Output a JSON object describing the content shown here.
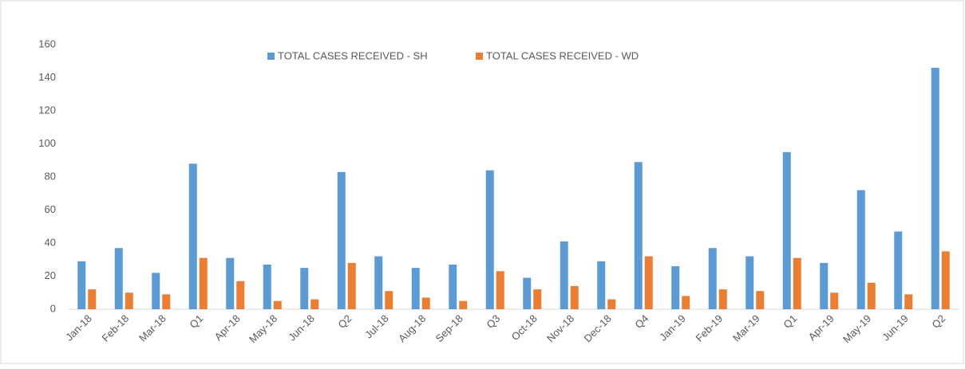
{
  "chart_data": {
    "type": "bar",
    "categories": [
      "Jan-18",
      "Feb-18",
      "Mar-18",
      "Q1",
      "Apr-18",
      "May-18",
      "Jun-18",
      "Q2",
      "Jul-18",
      "Aug-18",
      "Sep-18",
      "Q3",
      "Oct-18",
      "Nov-18",
      "Dec-18",
      "Q4",
      "Jan-19",
      "Feb-19",
      "Mar-19",
      "Q1",
      "Apr-19",
      "May-19",
      "Jun-19",
      "Q2"
    ],
    "series": [
      {
        "name": "TOTAL CASES RECEIVED - SH",
        "color": "#5b9bd5",
        "values": [
          29,
          37,
          22,
          88,
          31,
          27,
          25,
          83,
          32,
          25,
          27,
          84,
          19,
          41,
          29,
          89,
          26,
          37,
          32,
          95,
          28,
          72,
          47,
          146
        ]
      },
      {
        "name": "TOTAL CASES RECEIVED - WD",
        "color": "#ed7d31",
        "values": [
          12,
          10,
          9,
          31,
          17,
          5,
          6,
          28,
          11,
          7,
          5,
          23,
          12,
          14,
          6,
          32,
          8,
          12,
          11,
          31,
          10,
          16,
          9,
          35
        ]
      }
    ],
    "ylim": [
      0,
      160
    ],
    "yticks": [
      0,
      20,
      40,
      60,
      80,
      100,
      120,
      140,
      160
    ],
    "grid": false,
    "legend": "top"
  }
}
